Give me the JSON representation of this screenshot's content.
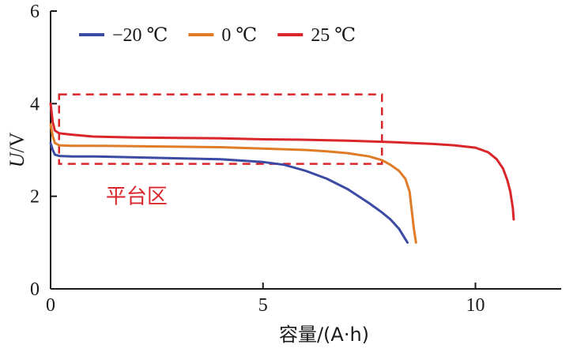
{
  "chart_data": {
    "type": "line",
    "xlabel": "容量/(A·h)",
    "ylabel_italic": "U",
    "ylabel_unit": "/V",
    "xlim": [
      0,
      12
    ],
    "ylim": [
      0,
      6
    ],
    "x_ticks": [
      "0",
      "5",
      "10"
    ],
    "y_ticks": [
      "0",
      "2",
      "4",
      "6"
    ],
    "grid": false,
    "legend_position": "top-left",
    "series": [
      {
        "name": "−20 ℃",
        "color": "#3b4aa3",
        "x": [
          0,
          0.05,
          0.1,
          0.2,
          0.5,
          1,
          2,
          3,
          4,
          4.5,
          5,
          5.5,
          6,
          6.5,
          7,
          7.5,
          7.8,
          8.0,
          8.2,
          8.4
        ],
        "y": [
          3.15,
          3.0,
          2.9,
          2.87,
          2.86,
          2.86,
          2.84,
          2.82,
          2.8,
          2.77,
          2.74,
          2.68,
          2.55,
          2.38,
          2.15,
          1.85,
          1.65,
          1.5,
          1.3,
          1.0
        ]
      },
      {
        "name": "0 ℃",
        "color": "#e07b28",
        "x": [
          0,
          0.05,
          0.1,
          0.2,
          0.5,
          1,
          2,
          3,
          4,
          5,
          6,
          6.5,
          7,
          7.5,
          7.8,
          8.0,
          8.2,
          8.35,
          8.45,
          8.5,
          8.55,
          8.6
        ],
        "y": [
          3.55,
          3.3,
          3.15,
          3.1,
          3.09,
          3.09,
          3.08,
          3.07,
          3.06,
          3.03,
          3.0,
          2.97,
          2.93,
          2.86,
          2.78,
          2.68,
          2.55,
          2.38,
          2.1,
          1.7,
          1.3,
          1.0
        ]
      },
      {
        "name": "25 ℃",
        "color": "#d9262b",
        "x": [
          0,
          0.05,
          0.1,
          0.2,
          0.5,
          1,
          2,
          3,
          4,
          5,
          6,
          7,
          8,
          9,
          9.5,
          10,
          10.3,
          10.5,
          10.65,
          10.75,
          10.82,
          10.88,
          10.9
        ],
        "y": [
          4.0,
          3.6,
          3.42,
          3.36,
          3.33,
          3.29,
          3.27,
          3.26,
          3.25,
          3.23,
          3.22,
          3.2,
          3.17,
          3.13,
          3.1,
          3.05,
          2.95,
          2.8,
          2.6,
          2.35,
          2.1,
          1.75,
          1.5
        ]
      }
    ],
    "annotation": {
      "label": "平台区",
      "color": "#d9262b",
      "rect_x": [
        0.2,
        7.8
      ],
      "rect_y": [
        2.7,
        4.2
      ],
      "label_at": [
        1.3,
        1.85
      ]
    }
  }
}
